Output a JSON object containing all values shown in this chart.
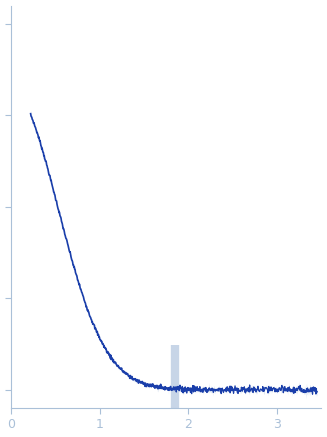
{
  "title": "",
  "xlabel": "",
  "ylabel": "",
  "xlim": [
    0,
    3.5
  ],
  "ylim": [
    -0.05,
    1.05
  ],
  "xticks": [
    0,
    1,
    2,
    3
  ],
  "ytick_positions": [
    0.0,
    0.25,
    0.5,
    0.75,
    1.0
  ],
  "line_color": "#1a3eaa",
  "error_color": "#b0c4de",
  "background_color": "#ffffff",
  "axis_color": "#aac0d8",
  "tick_color": "#aac0d8",
  "label_color": "#aac0d8",
  "figsize": [
    3.27,
    4.37
  ],
  "dpi": 100
}
